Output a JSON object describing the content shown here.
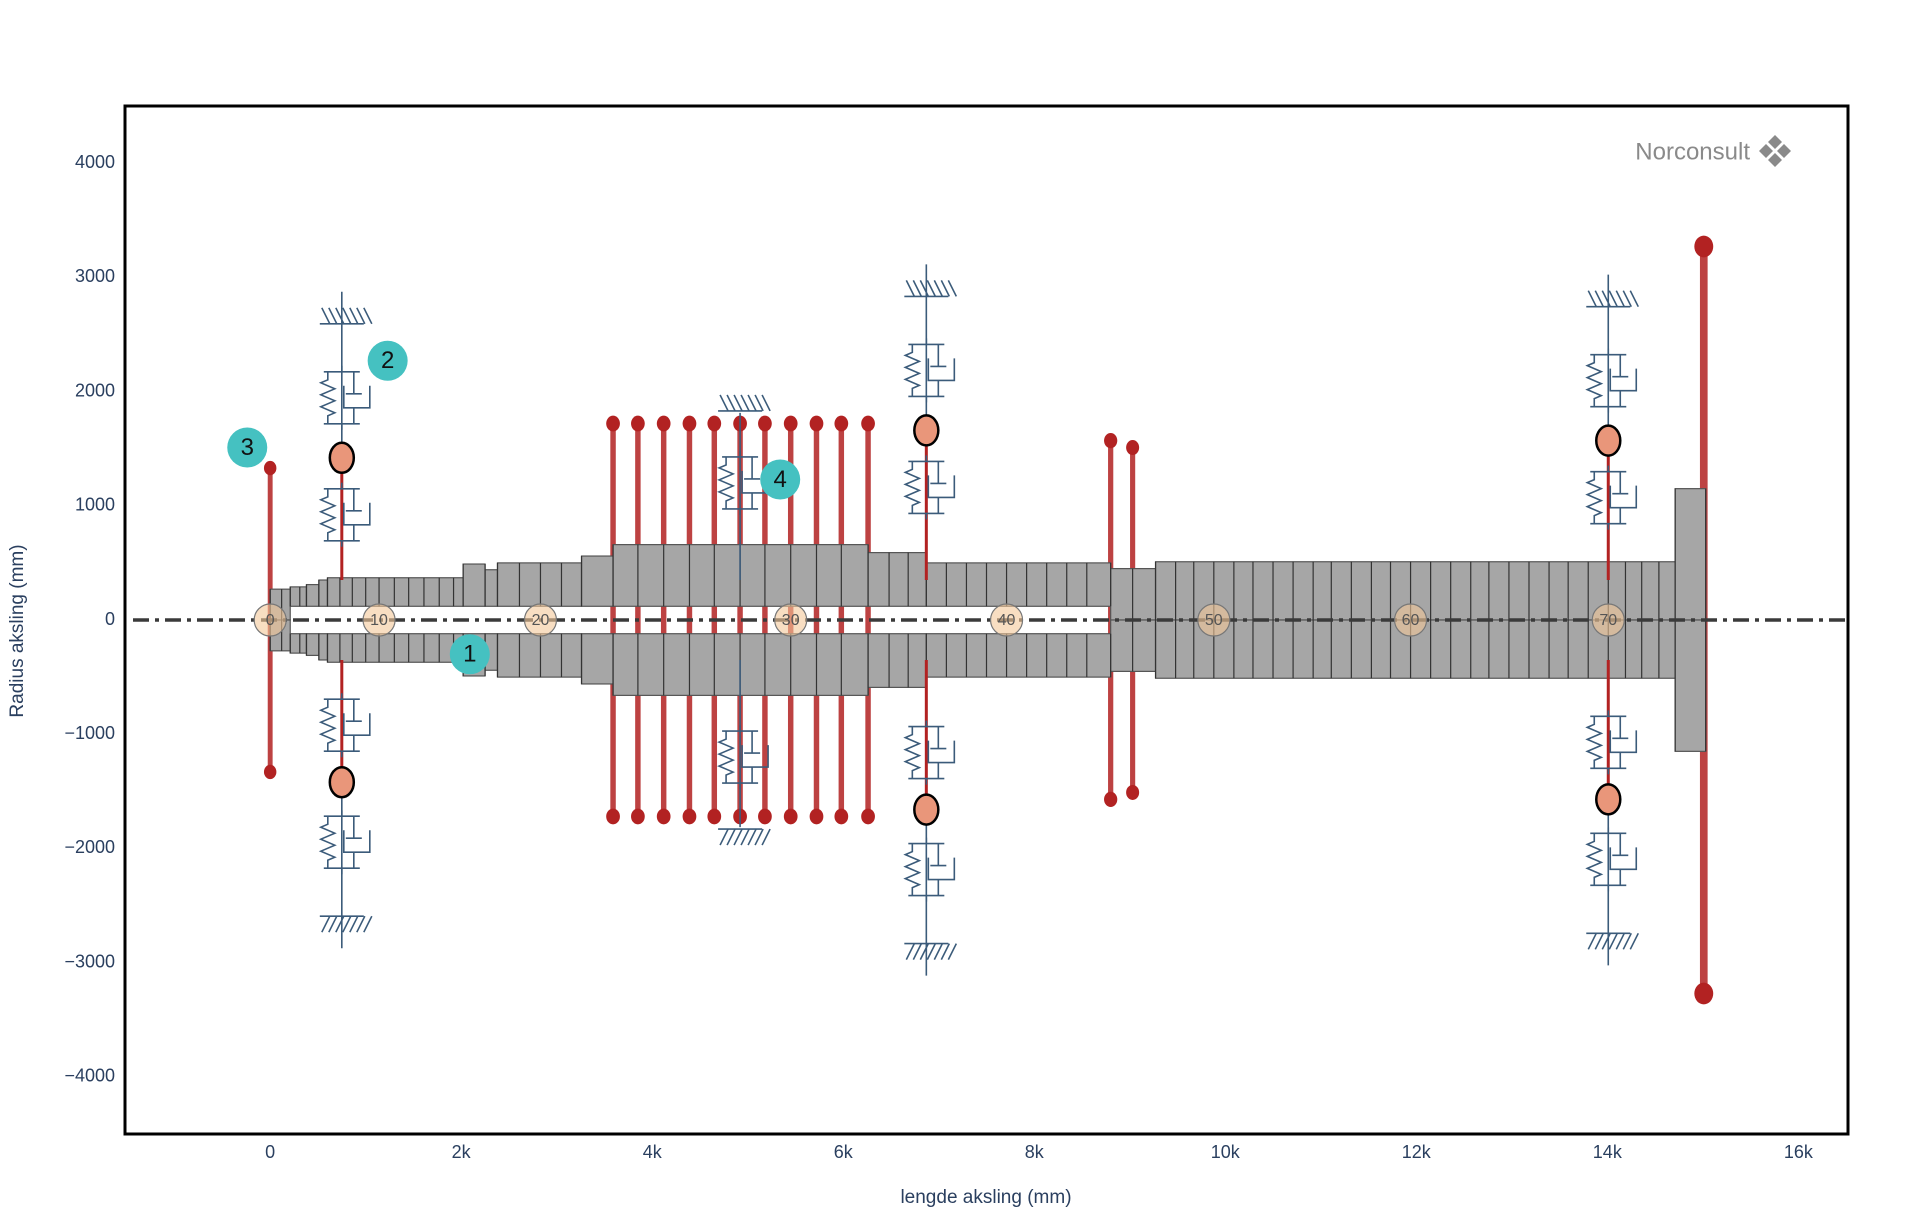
{
  "chart_data": {
    "type": "rotor",
    "xlabel": "lengde aksling  (mm)",
    "ylabel": "Radius aksling   (mm)",
    "logo": "Norconsult",
    "xlim": [
      -1520,
      16520
    ],
    "ylim": [
      -4500,
      4500
    ],
    "xticks": [
      0,
      {
        "value": 2000,
        "label": "2k"
      },
      {
        "value": 4000,
        "label": "4k"
      },
      {
        "value": 6000,
        "label": "6k"
      },
      {
        "value": 8000,
        "label": "8k"
      },
      {
        "value": 10000,
        "label": "10k"
      },
      {
        "value": 12000,
        "label": "12k"
      },
      {
        "value": 14000,
        "label": "14k"
      },
      {
        "value": 16000,
        "label": "16k"
      }
    ],
    "yticks": [
      {
        "value": -4000,
        "label": "−4000"
      },
      {
        "value": -3000,
        "label": "−3000"
      },
      {
        "value": -2000,
        "label": "−2000"
      },
      {
        "value": -1000,
        "label": "−1000"
      },
      0,
      1000,
      2000,
      3000,
      4000
    ],
    "colors": {
      "shaft": "#a6a6a6",
      "disk": "#b22222",
      "bearing": "#e9967a",
      "spring": "#3b5b7a",
      "callout": "#45c1c1",
      "node": "#f4c89a"
    },
    "node_x": [
      0,
      120,
      210,
      310,
      380,
      510,
      600,
      730,
      860,
      1000,
      1140,
      1300,
      1450,
      1610,
      1770,
      1920,
      2020,
      2250,
      2380,
      2610,
      2830,
      3050,
      3260,
      3590,
      3850,
      4120,
      4390,
      4650,
      4920,
      5180,
      5450,
      5720,
      5980,
      6260,
      6480,
      6680,
      6870,
      7080,
      7290,
      7500,
      7710,
      7920,
      8130,
      8340,
      8550,
      8800,
      9030,
      9270,
      9480,
      9670,
      9880,
      10090,
      10290,
      10500,
      10710,
      10920,
      11110,
      11320,
      11530,
      11730,
      11940,
      12150,
      12360,
      12570,
      12760,
      12970,
      13180,
      13390,
      13590,
      13800,
      14010,
      14190,
      14360,
      14540,
      14710,
      15030
    ],
    "shaft_sections": [
      {
        "start": 0,
        "end": 210,
        "outer": 270,
        "inner": 0
      },
      {
        "start": 210,
        "end": 380,
        "outer": 290,
        "inner": 120
      },
      {
        "start": 380,
        "end": 510,
        "outer": 310,
        "inner": 120
      },
      {
        "start": 510,
        "end": 600,
        "outer": 350,
        "inner": 120
      },
      {
        "start": 600,
        "end": 2020,
        "outer": 370,
        "inner": 120
      },
      {
        "start": 2020,
        "end": 2250,
        "outer": 490,
        "inner": 120
      },
      {
        "start": 2250,
        "end": 2380,
        "outer": 440,
        "inner": 120
      },
      {
        "start": 2380,
        "end": 3260,
        "outer": 500,
        "inner": 120
      },
      {
        "start": 3260,
        "end": 3590,
        "outer": 560,
        "inner": 120
      },
      {
        "start": 3590,
        "end": 6260,
        "outer": 660,
        "inner": 120
      },
      {
        "start": 6260,
        "end": 6870,
        "outer": 590,
        "inner": 120
      },
      {
        "start": 6870,
        "end": 8800,
        "outer": 500,
        "inner": 120
      },
      {
        "start": 8800,
        "end": 9270,
        "outer": 450,
        "inner": 0
      },
      {
        "start": 9270,
        "end": 14710,
        "outer": 510,
        "inner": 0
      },
      {
        "start": 14710,
        "end": 15030,
        "outer": 1150,
        "inner": 0
      }
    ],
    "node_markers": [
      {
        "label": "0",
        "x": 0
      },
      {
        "label": "10",
        "x": 1140
      },
      {
        "label": "20",
        "x": 2830
      },
      {
        "label": "30",
        "x": 5450
      },
      {
        "label": "40",
        "x": 7710
      },
      {
        "label": "50",
        "x": 9880
      },
      {
        "label": "60",
        "x": 11940
      },
      {
        "label": "70",
        "x": 14010
      }
    ],
    "disks": [
      {
        "x": 0,
        "radius": 1330
      },
      {
        "x": 3590,
        "radius": 1720
      },
      {
        "x": 3850,
        "radius": 1720
      },
      {
        "x": 4120,
        "radius": 1720
      },
      {
        "x": 4390,
        "radius": 1720
      },
      {
        "x": 4650,
        "radius": 1720
      },
      {
        "x": 4920,
        "radius": 1720
      },
      {
        "x": 5180,
        "radius": 1720
      },
      {
        "x": 5450,
        "radius": 1720
      },
      {
        "x": 5720,
        "radius": 1720
      },
      {
        "x": 5980,
        "radius": 1720
      },
      {
        "x": 6260,
        "radius": 1720
      },
      {
        "x": 8800,
        "radius": 1570
      },
      {
        "x": 9030,
        "radius": 1510
      },
      {
        "x": 15010,
        "radius": 3270
      }
    ],
    "bearings": [
      {
        "x": 750,
        "radius": 1420
      },
      {
        "x": 6870,
        "radius": 1660
      },
      {
        "x": 14010,
        "radius": 1570
      }
    ],
    "dampers": [
      {
        "x": 4920,
        "radius": 1200
      }
    ],
    "callouts": [
      {
        "text": "1",
        "x": 2090,
        "y": -300
      },
      {
        "text": "2",
        "x": 1230,
        "y": 2270
      },
      {
        "text": "3",
        "x": -240,
        "y": 1510
      },
      {
        "text": "4",
        "x": 5340,
        "y": 1230
      }
    ]
  }
}
